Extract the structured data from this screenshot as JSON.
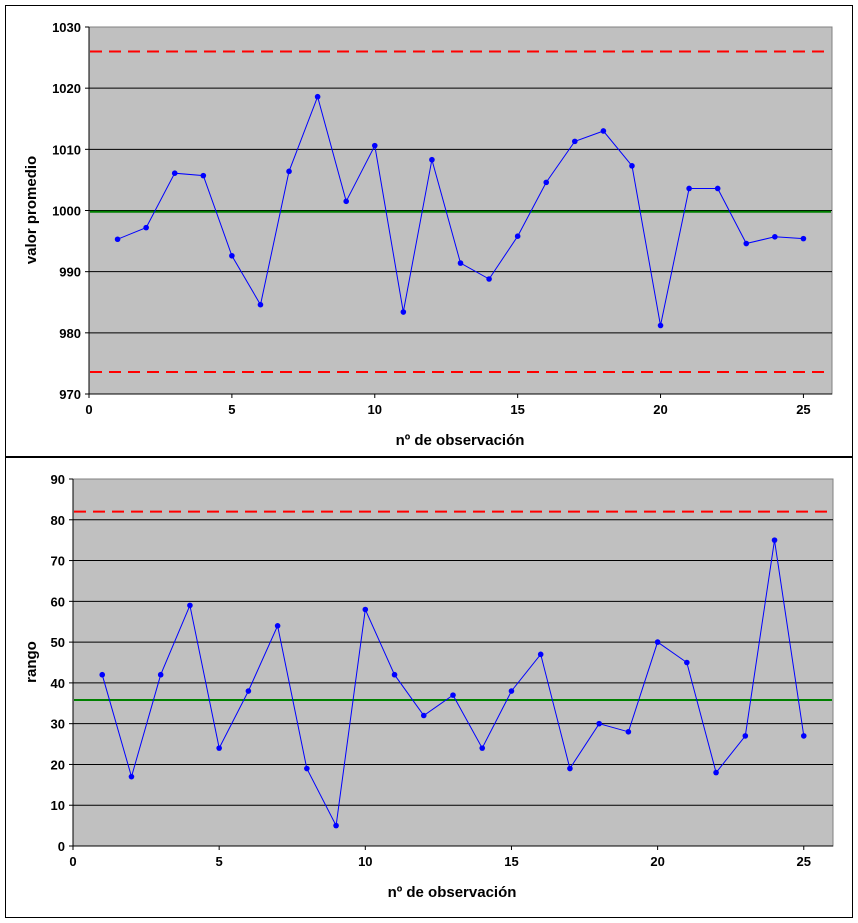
{
  "chart_data": [
    {
      "type": "line",
      "title": "",
      "xlabel": "nº de observación",
      "ylabel": "valor promedio",
      "xlim": [
        0,
        26
      ],
      "ylim": [
        970,
        1030
      ],
      "xticks": [
        0,
        5,
        10,
        15,
        20,
        25
      ],
      "yticks": [
        970,
        980,
        990,
        1000,
        1010,
        1020,
        1030
      ],
      "grid": true,
      "legend": "none",
      "plot_background": "#c0c0c0",
      "series": [
        {
          "color": "#0000ff",
          "x": [
            1,
            2,
            3,
            4,
            5,
            6,
            7,
            8,
            9,
            10,
            11,
            12,
            13,
            14,
            15,
            16,
            17,
            18,
            19,
            20,
            21,
            22,
            23,
            24,
            25
          ],
          "y": [
            995.3,
            997.2,
            1006.1,
            1005.7,
            992.6,
            984.6,
            1006.4,
            1018.6,
            1001.5,
            1010.6,
            983.4,
            1008.3,
            991.4,
            988.8,
            995.8,
            1004.6,
            1011.3,
            1013.0,
            1007.3,
            981.2,
            1003.6,
            1003.6,
            994.6,
            995.7,
            995.4
          ]
        }
      ],
      "reference_lines": [
        {
          "kind": "upper_control_limit",
          "y": 1026.0,
          "color": "#ff0000",
          "style": "dashed"
        },
        {
          "kind": "center_line",
          "y": 999.8,
          "color": "#008000",
          "style": "solid"
        },
        {
          "kind": "lower_control_limit",
          "y": 973.6,
          "color": "#ff0000",
          "style": "dashed"
        }
      ]
    },
    {
      "type": "line",
      "title": "",
      "xlabel": "nº de observación",
      "ylabel": "rango",
      "xlim": [
        0,
        26
      ],
      "ylim": [
        0,
        90
      ],
      "xticks": [
        0,
        5,
        10,
        15,
        20,
        25
      ],
      "yticks": [
        0,
        10,
        20,
        30,
        40,
        50,
        60,
        70,
        80,
        90
      ],
      "grid": true,
      "legend": "none",
      "plot_background": "#c0c0c0",
      "series": [
        {
          "color": "#0000ff",
          "x": [
            1,
            2,
            3,
            4,
            5,
            6,
            7,
            8,
            9,
            10,
            11,
            12,
            13,
            14,
            15,
            16,
            17,
            18,
            19,
            20,
            21,
            22,
            23,
            24,
            25
          ],
          "y": [
            42,
            17,
            42,
            59,
            24,
            38,
            54,
            19,
            5,
            58,
            42,
            32,
            37,
            24,
            38,
            47,
            19,
            30,
            28,
            50,
            45,
            18,
            27,
            75,
            27
          ]
        }
      ],
      "reference_lines": [
        {
          "kind": "upper_control_limit",
          "y": 82.0,
          "color": "#ff0000",
          "style": "dashed"
        },
        {
          "kind": "center_line",
          "y": 35.8,
          "color": "#008000",
          "style": "solid"
        }
      ]
    }
  ]
}
